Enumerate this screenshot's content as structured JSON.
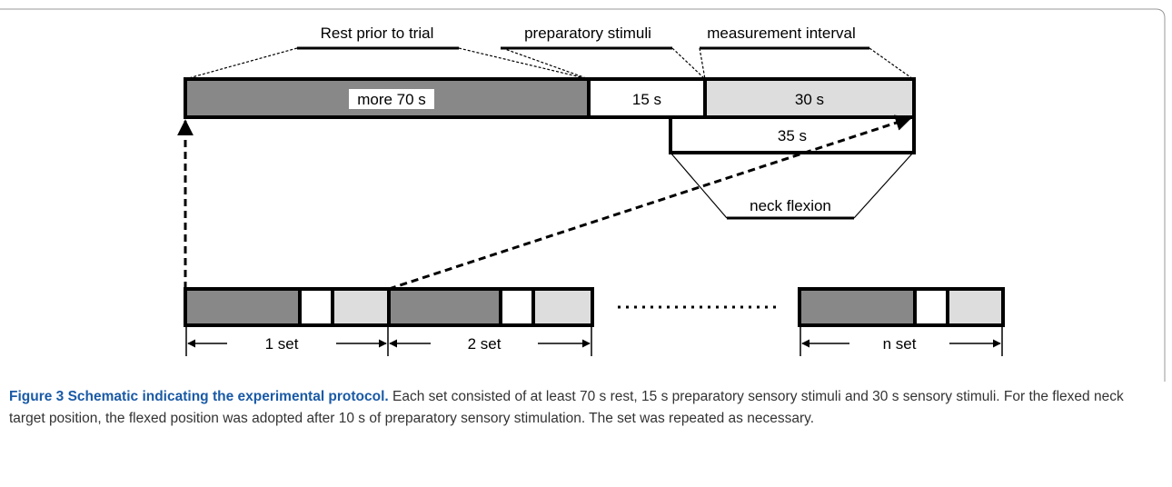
{
  "phases": {
    "rest": "Rest prior to trial",
    "preparatory": "preparatory stimuli",
    "measurement": "measurement interval",
    "neck": "neck flexion"
  },
  "bar": {
    "rest": "more 70 s",
    "preparatory": "15 s",
    "measurement": "30 s",
    "neck": "35 s"
  },
  "sets": [
    "1 set",
    "2 set",
    "n set"
  ],
  "caption": {
    "title": "Figure 3 Schematic indicating the experimental protocol.",
    "text": "Each set consisted of at least 70 s rest, 15 s preparatory sensory stimuli and 30 s sensory stimuli. For the flexed neck target position, the flexed position was adopted after 10 s of preparatory sensory stimulation. The set was repeated as necessary."
  }
}
